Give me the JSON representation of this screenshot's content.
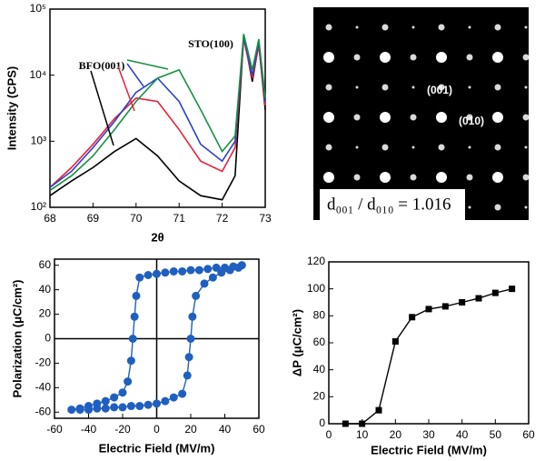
{
  "chart_data": [
    {
      "type": "line",
      "y_label": "Intensity (CPS)",
      "x_label": "2θ",
      "log_y": true,
      "annotations": [
        "BFO(001)",
        "STO(100)"
      ],
      "x": [
        68,
        68.5,
        69,
        69.5,
        70,
        70.5,
        71,
        71.5,
        72,
        72.3,
        72.5,
        72.7,
        72.85,
        73
      ],
      "series": [
        {
          "color": "#000000",
          "values": [
            150,
            250,
            400,
            700,
            1100,
            600,
            250,
            150,
            130,
            300,
            40000,
            8000,
            30000,
            3000
          ]
        },
        {
          "color": "#e8203a",
          "values": [
            200,
            400,
            900,
            2200,
            4500,
            4000,
            1500,
            500,
            350,
            800,
            35000,
            9000,
            28000,
            3500
          ]
        },
        {
          "color": "#2a3fd0",
          "values": [
            200,
            350,
            800,
            2000,
            5500,
            9000,
            4000,
            900,
            500,
            1000,
            38000,
            10000,
            32000,
            4000
          ]
        },
        {
          "color": "#159040",
          "values": [
            180,
            300,
            600,
            1500,
            4000,
            9000,
            12000,
            3000,
            700,
            1200,
            42000,
            12000,
            35000,
            4500
          ]
        }
      ],
      "xlim": [
        68,
        73
      ],
      "xticks": [
        68,
        69,
        70,
        71,
        72,
        73
      ],
      "ylim": [
        100,
        100000
      ],
      "yticks": [
        {
          "value": 100,
          "label": "10²"
        },
        {
          "value": 1000,
          "label": "10³"
        },
        {
          "value": 10000,
          "label": "10⁴"
        },
        {
          "value": 100000,
          "label": "10⁵"
        }
      ]
    },
    {
      "type": "scatter-line",
      "y_label": "Polarization (μC/cm²)",
      "x_label": "Electric Field (MV/m)",
      "zero_lines": true,
      "marker": "circle",
      "x": [
        50,
        45,
        40,
        35,
        30,
        25,
        20,
        15,
        10,
        5,
        0,
        -5,
        -10,
        -12,
        -13,
        -14,
        -15,
        -17,
        -20,
        -25,
        -30,
        -35,
        -40,
        -45,
        -50,
        -45,
        -40,
        -35,
        -30,
        -25,
        -20,
        -15,
        -10,
        -5,
        0,
        5,
        10,
        15,
        18,
        19,
        20,
        21,
        23,
        28,
        33,
        38,
        43,
        48,
        50
      ],
      "series": [
        {
          "color": "#1f5fbf",
          "values": [
            60,
            59,
            58,
            58,
            57,
            56,
            56,
            55,
            55,
            54,
            53,
            52,
            50,
            35,
            18,
            0,
            -18,
            -35,
            -44,
            -48,
            -51,
            -53,
            -55,
            -57,
            -58,
            -58,
            -58,
            -57,
            -57,
            -56,
            -56,
            -55,
            -55,
            -54,
            -53,
            -51,
            -48,
            -45,
            -30,
            -15,
            0,
            18,
            35,
            45,
            50,
            54,
            56,
            58,
            60
          ]
        }
      ],
      "xlim": [
        -60,
        60
      ],
      "xticks": [
        -60,
        -40,
        -20,
        0,
        20,
        40,
        60
      ],
      "ylim": [
        -65,
        65
      ],
      "yticks": [
        -60,
        -40,
        -20,
        0,
        20,
        40,
        60
      ]
    },
    {
      "type": "scatter-line",
      "y_label": "ΔP (μC/cm²)",
      "x_label": "Electric Field (MV/m)",
      "marker": "square",
      "x": [
        5,
        10,
        15,
        20,
        25,
        30,
        35,
        40,
        45,
        50,
        55
      ],
      "series": [
        {
          "color": "#000000",
          "values": [
            0,
            0,
            10,
            61,
            79,
            85,
            87,
            90,
            93,
            97,
            100
          ]
        }
      ],
      "xlim": [
        0,
        60
      ],
      "xticks": [
        0,
        10,
        20,
        30,
        40,
        50,
        60
      ],
      "ylim": [
        0,
        120
      ],
      "yticks": [
        0,
        20,
        40,
        60,
        80,
        100,
        120
      ]
    }
  ],
  "diffraction": {
    "labels": [
      "(001)",
      "(010)"
    ],
    "ratio": "d₀₀₁ / d₀₁₀ = 1.016"
  }
}
